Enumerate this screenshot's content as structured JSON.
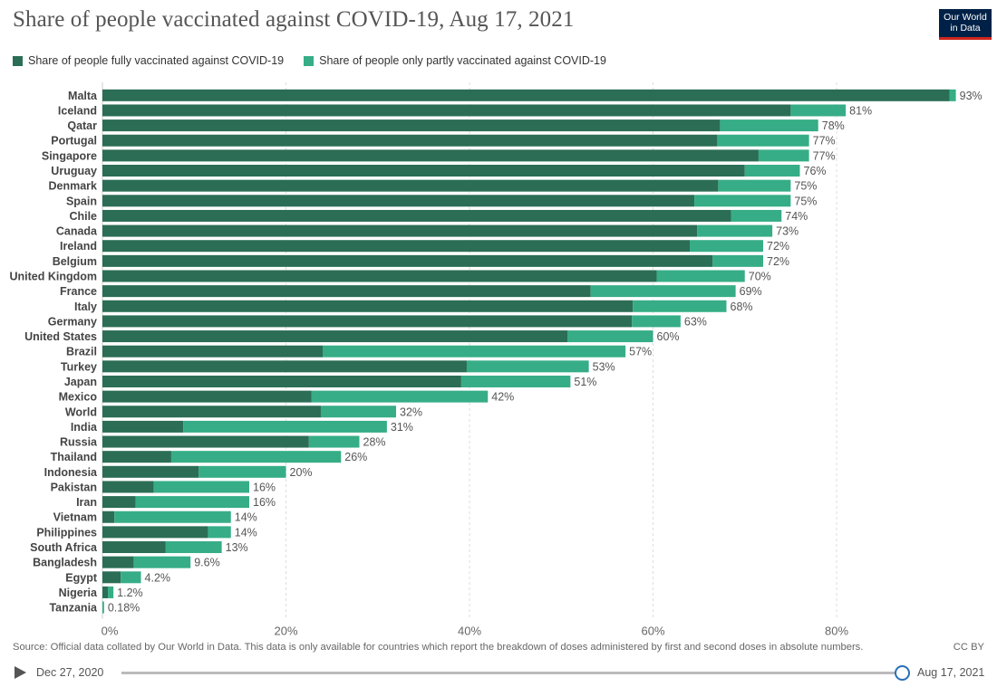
{
  "header": {
    "title": "Share of people vaccinated against COVID-19, Aug 17, 2021",
    "logo_line1": "Our World",
    "logo_line2": "in Data"
  },
  "colors": {
    "fully": "#2b6d55",
    "partly": "#36ad86",
    "grid": "#dddddd"
  },
  "chart_data": {
    "type": "bar",
    "orientation": "horizontal",
    "stacked": true,
    "title": "Share of people vaccinated against COVID-19, Aug 17, 2021",
    "legend_placement": "top-left",
    "grid": true,
    "xlim": [
      0,
      93
    ],
    "x_ticks": [
      "0%",
      "20%",
      "40%",
      "60%",
      "80%"
    ],
    "x_tick_values": [
      0,
      20,
      40,
      60,
      80
    ],
    "series": [
      {
        "name": "Share of people fully vaccinated against COVID-19",
        "color": "#2b6d55"
      },
      {
        "name": "Share of people only partly vaccinated against COVID-19",
        "color": "#36ad86"
      }
    ],
    "rows": [
      {
        "country": "Malta",
        "fully": 92.3,
        "total": 93,
        "label": "93%"
      },
      {
        "country": "Iceland",
        "fully": 75.0,
        "total": 81,
        "label": "81%"
      },
      {
        "country": "Qatar",
        "fully": 67.3,
        "total": 78,
        "label": "78%"
      },
      {
        "country": "Portugal",
        "fully": 67.0,
        "total": 77,
        "label": "77%"
      },
      {
        "country": "Singapore",
        "fully": 71.5,
        "total": 77,
        "label": "77%"
      },
      {
        "country": "Uruguay",
        "fully": 70.0,
        "total": 76,
        "label": "76%"
      },
      {
        "country": "Denmark",
        "fully": 67.1,
        "total": 75,
        "label": "75%"
      },
      {
        "country": "Spain",
        "fully": 64.5,
        "total": 75,
        "label": "75%"
      },
      {
        "country": "Chile",
        "fully": 68.5,
        "total": 74,
        "label": "74%"
      },
      {
        "country": "Canada",
        "fully": 64.8,
        "total": 73,
        "label": "73%"
      },
      {
        "country": "Ireland",
        "fully": 64.0,
        "total": 72,
        "label": "72%"
      },
      {
        "country": "Belgium",
        "fully": 66.5,
        "total": 72,
        "label": "72%"
      },
      {
        "country": "United Kingdom",
        "fully": 60.4,
        "total": 70,
        "label": "70%"
      },
      {
        "country": "France",
        "fully": 53.2,
        "total": 69,
        "label": "69%"
      },
      {
        "country": "Italy",
        "fully": 57.8,
        "total": 68,
        "label": "68%"
      },
      {
        "country": "Germany",
        "fully": 57.7,
        "total": 63,
        "label": "63%"
      },
      {
        "country": "United States",
        "fully": 50.7,
        "total": 60,
        "label": "60%"
      },
      {
        "country": "Brazil",
        "fully": 24.0,
        "total": 57,
        "label": "57%"
      },
      {
        "country": "Turkey",
        "fully": 39.7,
        "total": 53,
        "label": "53%"
      },
      {
        "country": "Japan",
        "fully": 39.1,
        "total": 51,
        "label": "51%"
      },
      {
        "country": "Mexico",
        "fully": 22.8,
        "total": 42,
        "label": "42%"
      },
      {
        "country": "World",
        "fully": 23.8,
        "total": 32,
        "label": "32%"
      },
      {
        "country": "India",
        "fully": 8.8,
        "total": 31,
        "label": "31%"
      },
      {
        "country": "Russia",
        "fully": 22.5,
        "total": 28,
        "label": "28%"
      },
      {
        "country": "Thailand",
        "fully": 7.5,
        "total": 26,
        "label": "26%"
      },
      {
        "country": "Indonesia",
        "fully": 10.5,
        "total": 20,
        "label": "20%"
      },
      {
        "country": "Pakistan",
        "fully": 5.6,
        "total": 16,
        "label": "16%"
      },
      {
        "country": "Iran",
        "fully": 3.6,
        "total": 16,
        "label": "16%"
      },
      {
        "country": "Vietnam",
        "fully": 1.3,
        "total": 14,
        "label": "14%"
      },
      {
        "country": "Philippines",
        "fully": 11.5,
        "total": 14,
        "label": "14%"
      },
      {
        "country": "South Africa",
        "fully": 6.9,
        "total": 13,
        "label": "13%"
      },
      {
        "country": "Bangladesh",
        "fully": 3.4,
        "total": 9.6,
        "label": "9.6%"
      },
      {
        "country": "Egypt",
        "fully": 2.0,
        "total": 4.2,
        "label": "4.2%"
      },
      {
        "country": "Nigeria",
        "fully": 0.6,
        "total": 1.2,
        "label": "1.2%"
      },
      {
        "country": "Tanzania",
        "fully": 0.0,
        "total": 0.18,
        "label": "0.18%"
      }
    ]
  },
  "footer": {
    "source": "Source: Official data collated by Our World in Data. This data is only available for countries which report the breakdown of doses administered by first and second doses in absolute numbers.",
    "license": "CC BY"
  },
  "timeline": {
    "start": "Dec 27, 2020",
    "end": "Aug 17, 2021"
  }
}
